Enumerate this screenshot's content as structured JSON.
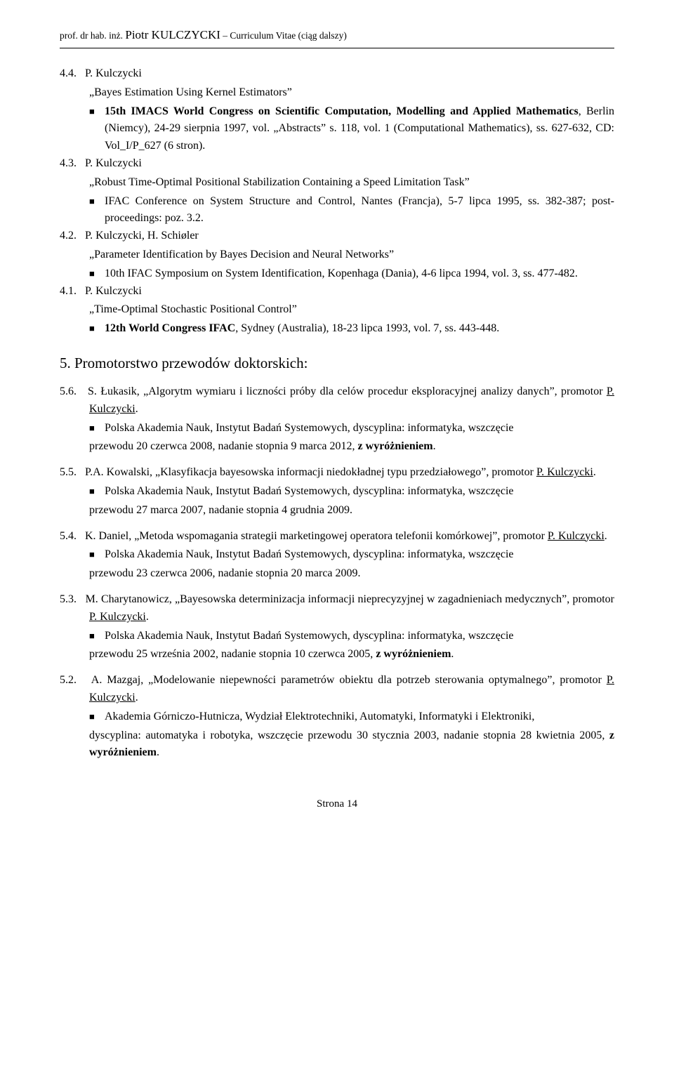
{
  "header": {
    "prefix": "prof. dr hab. inż. ",
    "name": "Piotr KULCZYCKI",
    "suffix": " – Curriculum Vitae  (ciąg dalszy)"
  },
  "items": [
    {
      "num": "4.4.",
      "author": "P. Kulczycki",
      "title": "„Bayes Estimation Using Kernel Estimators”",
      "bullet": "<b>15th IMACS World Congress on Scientific Computation, Modelling and Applied Mathematics</b>, Berlin (Niemcy), 24-29 sierpnia 1997, vol. „Abstracts” s. 118, vol. 1 (Computational Mathematics), ss. 627-632, CD: Vol_I/P_627 (6 stron)."
    },
    {
      "num": "4.3.",
      "author": "P. Kulczycki",
      "title": "„Robust Time-Optimal Positional Stabilization Containing a Speed Limitation Task”",
      "bullet": "IFAC Conference on System Structure and Control, Nantes (Francja), 5-7 lipca 1995, ss. 382-387; post-proceedings: poz. 3.2."
    },
    {
      "num": "4.2.",
      "author": "P. Kulczycki, H. Schiøler",
      "title": "„Parameter Identification by Bayes Decision and Neural Networks”",
      "bullet": "10th IFAC Symposium on System Identification, Kopenhaga (Dania), 4-6 lipca 1994, vol. 3, ss. 477-482."
    },
    {
      "num": "4.1.",
      "author": "P. Kulczycki",
      "title": "„Time-Optimal Stochastic Positional Control”",
      "bullet": "<b>12th World Congress IFAC</b>, Sydney (Australia), 18-23 lipca 1993, vol. 7, ss. 443-448."
    }
  ],
  "sectionTitle": "5. Promotorstwo przewodów doktorskich:",
  "doctoral": [
    {
      "num": "5.6.",
      "head": "S. Łukasik, „Algorytm wymiaru i liczności próby dla celów procedur eksploracyjnej analizy danych”, promotor <span class=\"u\">P. Kulczycki</span>.",
      "bullet": "Polska Akademia Nauk, Instytut Badań Systemowych, dyscyplina: informatyka, wszczęcie",
      "tail": "przewodu 20 czerwca 2008, nadanie stopnia 9 marca 2012, <b>z wyróżnieniem</b>."
    },
    {
      "num": "5.5.",
      "head": "P.A. Kowalski, „Klasyfikacja bayesowska informacji niedokładnej typu przedziałowego”, promotor <span class=\"u\">P. Kulczycki</span>.",
      "bullet": "Polska Akademia Nauk, Instytut Badań Systemowych, dyscyplina: informatyka, wszczęcie",
      "tail": "przewodu 27 marca 2007, nadanie stopnia 4 grudnia 2009."
    },
    {
      "num": "5.4.",
      "head": "K. Daniel, „Metoda wspomagania strategii marketingowej operatora telefonii komórkowej”, promotor <span class=\"u\">P. Kulczycki</span>.",
      "bullet": "Polska Akademia Nauk, Instytut Badań Systemowych, dyscyplina: informatyka, wszczęcie",
      "tail": "przewodu 23 czerwca 2006, nadanie stopnia 20 marca 2009."
    },
    {
      "num": "5.3.",
      "head": "M. Charytanowicz, „Bayesowska determinizacja informacji nieprecyzyjnej w zagadnieniach medycznych”, promotor <span class=\"u\">P. Kulczycki</span>.",
      "bullet": "Polska Akademia Nauk, Instytut Badań Systemowych, dyscyplina: informatyka, wszczęcie",
      "tail": "przewodu 25 września 2002, nadanie stopnia 10 czerwca 2005, <b>z wyróżnieniem</b>."
    },
    {
      "num": "5.2.",
      "head": "A. Mazgaj, „Modelowanie niepewności parametrów obiektu dla potrzeb sterowania optymalnego”, promotor <span class=\"u\">P. Kulczycki</span>.",
      "bullet": "Akademia Górniczo-Hutnicza, Wydział Elektrotechniki, Automatyki, Informatyki i Elektroniki,",
      "tail": "dyscyplina: automatyka i robotyka, wszczęcie przewodu 30 stycznia 2003, nadanie stopnia 28 kwietnia 2005, <b>z wyróżnieniem</b>."
    }
  ],
  "footer": "Strona 14"
}
